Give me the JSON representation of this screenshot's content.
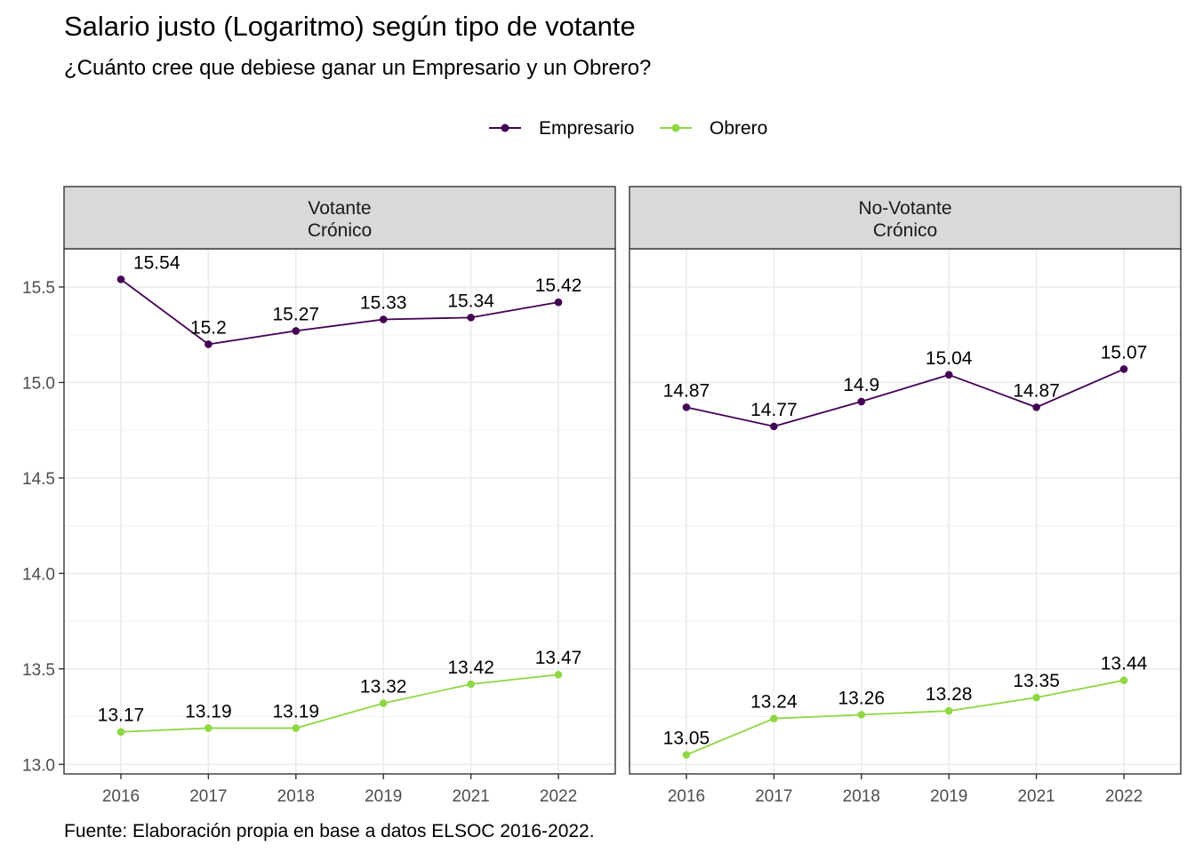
{
  "chart_data": {
    "type": "line",
    "title": "Salario justo (Logaritmo) según tipo de votante",
    "subtitle": "¿Cuánto cree que debiese ganar un Empresario y un Obrero?",
    "caption": "Fuente: Elaboración propia en base a datos ELSOC 2016-2022.",
    "legend_position": "top",
    "categories": [
      "2016",
      "2017",
      "2018",
      "2019",
      "2021",
      "2022"
    ],
    "ylim": [
      12.95,
      15.7
    ],
    "yticks": [
      "13.0",
      "13.5",
      "14.0",
      "14.5",
      "15.0",
      "15.5"
    ],
    "grid": true,
    "legend": [
      {
        "name": "Empresario",
        "color": "#440154"
      },
      {
        "name": "Obrero",
        "color": "#8fd744"
      }
    ],
    "panels": [
      {
        "strip_line1": "Votante",
        "strip_line2": "Crónico",
        "series": [
          {
            "name": "Empresario",
            "color": "#440154",
            "values": [
              15.54,
              15.2,
              15.27,
              15.33,
              15.34,
              15.42
            ],
            "labels": [
              "15.54",
              "15.2",
              "15.27",
              "15.33",
              "15.34",
              "15.42"
            ]
          },
          {
            "name": "Obrero",
            "color": "#8fd744",
            "values": [
              13.17,
              13.19,
              13.19,
              13.32,
              13.42,
              13.47
            ],
            "labels": [
              "13.17",
              "13.19",
              "13.19",
              "13.32",
              "13.42",
              "13.47"
            ]
          }
        ]
      },
      {
        "strip_line1": "No-Votante",
        "strip_line2": "Crónico",
        "series": [
          {
            "name": "Empresario",
            "color": "#440154",
            "values": [
              14.87,
              14.77,
              14.9,
              15.04,
              14.87,
              15.07
            ],
            "labels": [
              "14.87",
              "14.77",
              "14.9",
              "15.04",
              "14.87",
              "15.07"
            ]
          },
          {
            "name": "Obrero",
            "color": "#8fd744",
            "values": [
              13.05,
              13.24,
              13.26,
              13.28,
              13.35,
              13.44
            ],
            "labels": [
              "13.05",
              "13.24",
              "13.26",
              "13.28",
              "13.35",
              "13.44"
            ]
          }
        ]
      }
    ]
  }
}
